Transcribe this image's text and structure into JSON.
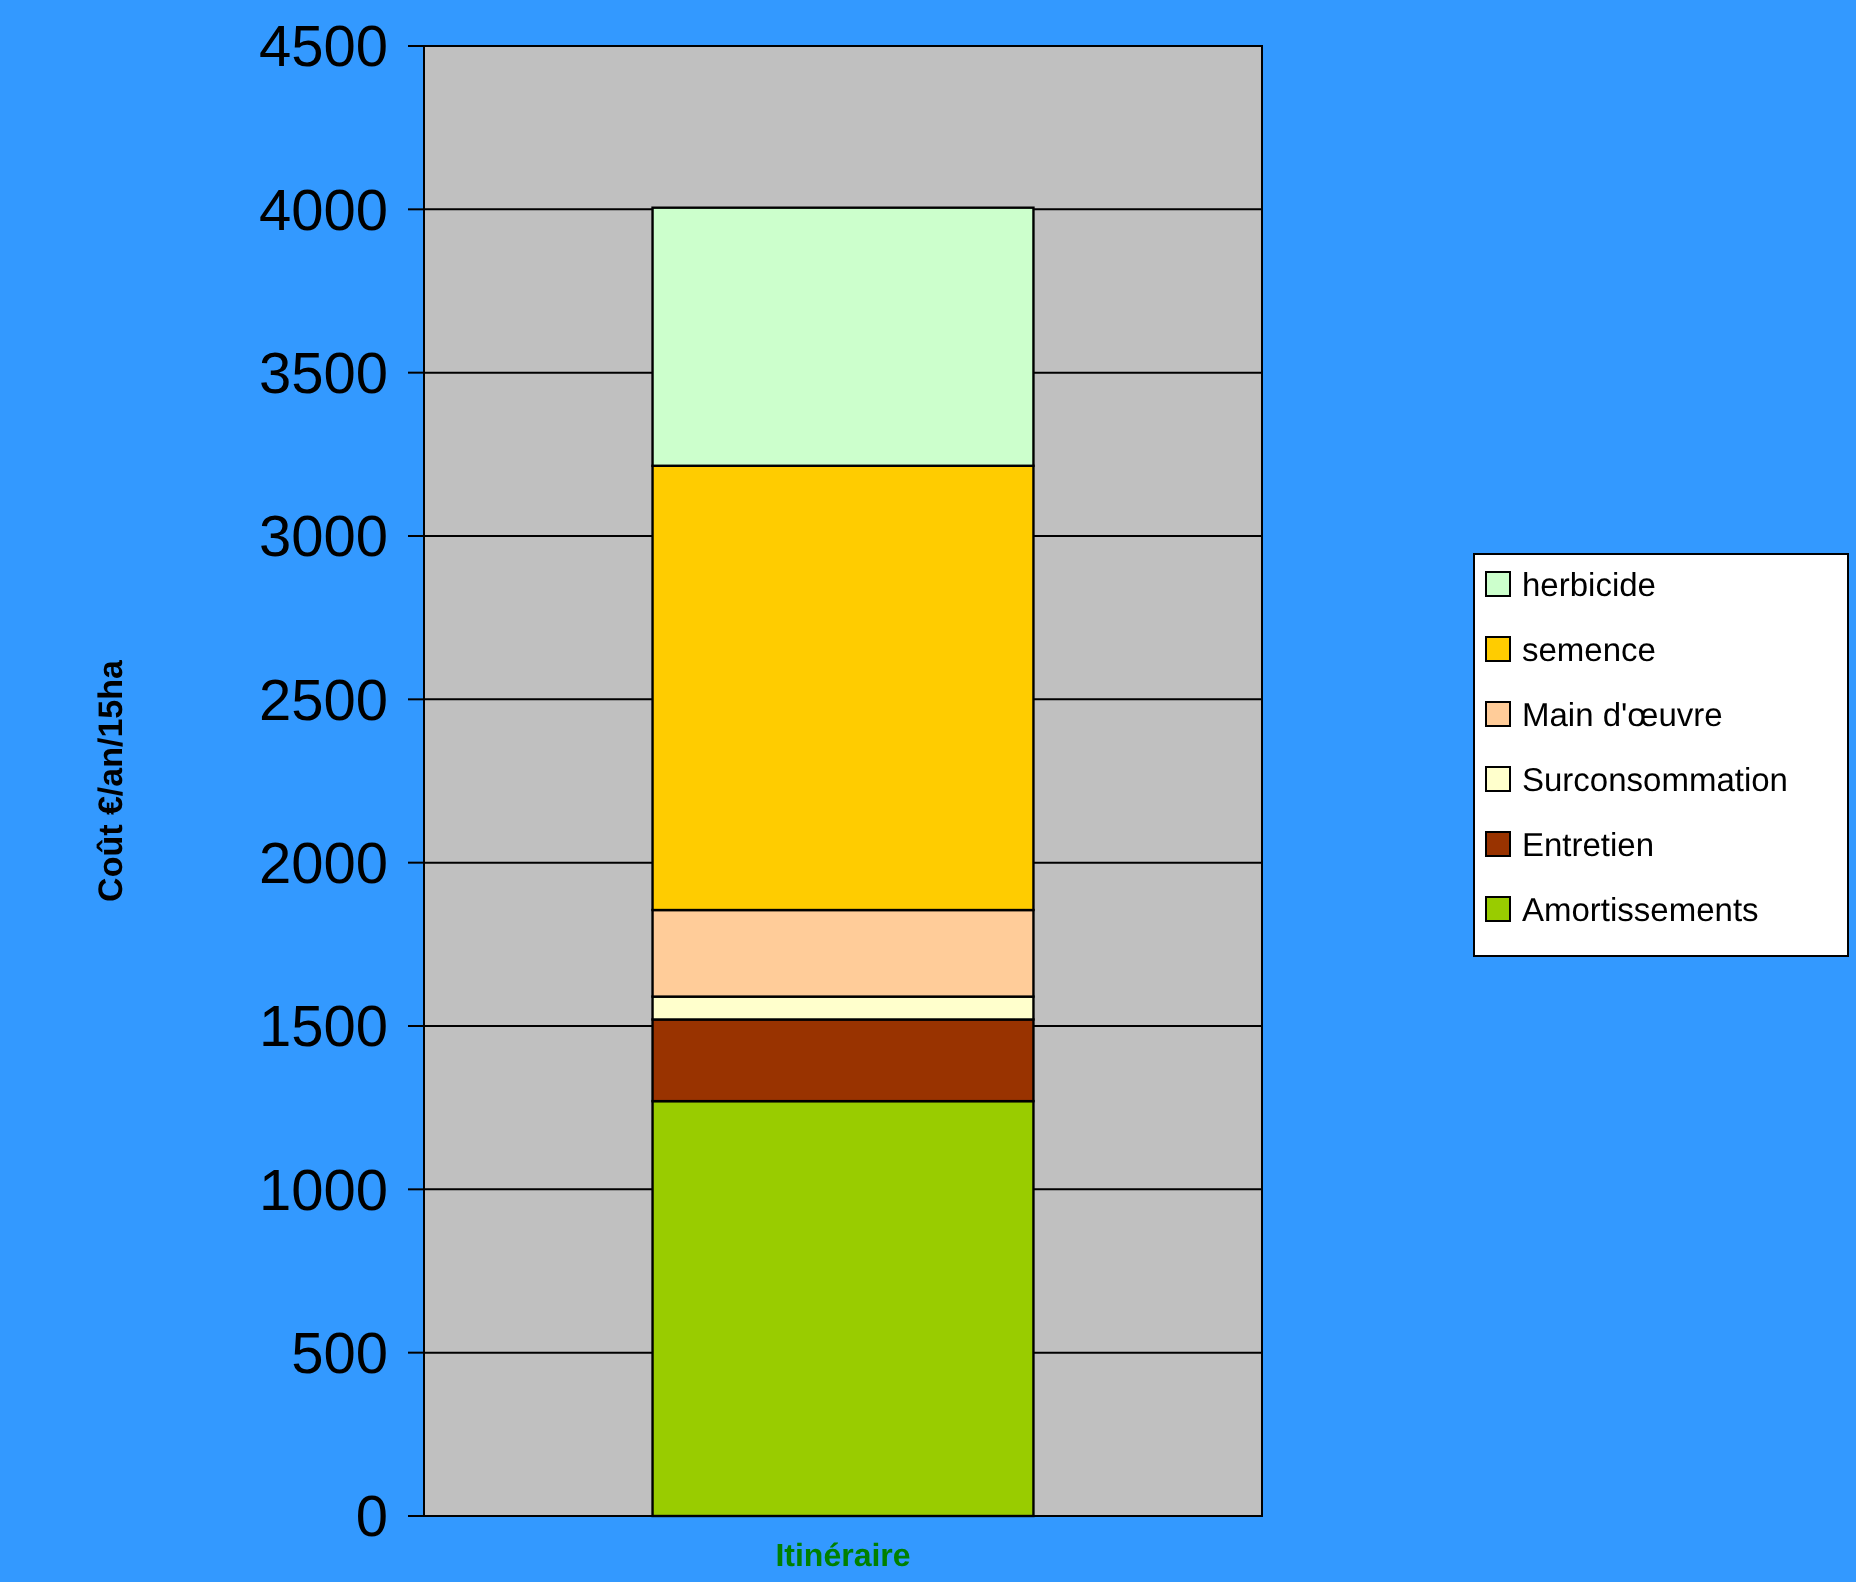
{
  "chart_data": {
    "type": "bar",
    "stacked": true,
    "ylabel": "Coût  €/an/15ha",
    "categories": [
      "Itinéraire"
    ],
    "ylim": [
      0,
      4500
    ],
    "yticks": [
      0,
      500,
      1000,
      1500,
      2000,
      2500,
      3000,
      3500,
      4000,
      4500
    ],
    "grid": "y",
    "legend": "right",
    "series": [
      {
        "name": "Amortissements",
        "color": "#99cc00",
        "values": [
          1270
        ]
      },
      {
        "name": "Entretien",
        "color": "#993300",
        "values": [
          250
        ]
      },
      {
        "name": "Surconsommation",
        "color": "#ffffcc",
        "values": [
          70
        ]
      },
      {
        "name": "Main d'œuvre",
        "color": "#ffcc99",
        "values": [
          265
        ]
      },
      {
        "name": "semence",
        "color": "#ffcc00",
        "values": [
          1360
        ]
      },
      {
        "name": "herbicide",
        "color": "#ccffcc",
        "values": [
          790
        ]
      }
    ]
  }
}
